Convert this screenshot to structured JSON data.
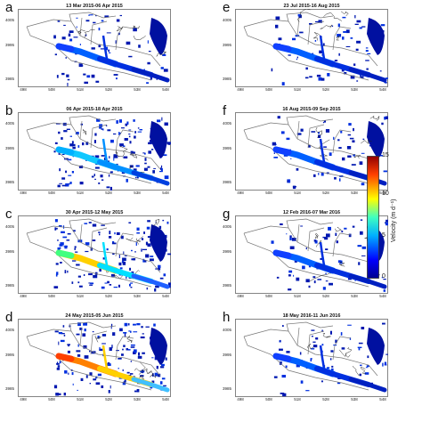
{
  "panels": [
    {
      "letter": "a",
      "title": "13 Mar 2015-06 Apr 2015",
      "flow": "blue"
    },
    {
      "letter": "b",
      "title": "06 Apr 2015-18 Apr 2015",
      "flow": "cyan"
    },
    {
      "letter": "c",
      "title": "30 Apr 2015-12 May 2015",
      "flow": "fast"
    },
    {
      "letter": "d",
      "title": "24 May 2015-05 Jun 2015",
      "flow": "veryfast"
    },
    {
      "letter": "e",
      "title": "23 Jul 2015-16 Aug 2015",
      "flow": "blue"
    },
    {
      "letter": "f",
      "title": "16 Aug 2015-09 Sep 2015",
      "flow": "blue"
    },
    {
      "letter": "g",
      "title": "12 Feb 2016-07 Mar 2016",
      "flow": "blue"
    },
    {
      "letter": "h",
      "title": "18 May 2016-11 Jun 2016",
      "flow": "blue"
    }
  ],
  "axes": {
    "y_ticks": [
      "4005",
      "3995",
      "3985"
    ],
    "x_ticks": [
      "498",
      "508",
      "518",
      "528",
      "538",
      "548"
    ]
  },
  "colorbar": {
    "label": "Velocity (m d⁻¹)",
    "ticks": [
      "15",
      "10",
      "5",
      "0"
    ],
    "colors": {
      "low": "#00008f",
      "mid": "#00d0ff",
      "high": "#ffd000",
      "max": "#b00000"
    }
  }
}
